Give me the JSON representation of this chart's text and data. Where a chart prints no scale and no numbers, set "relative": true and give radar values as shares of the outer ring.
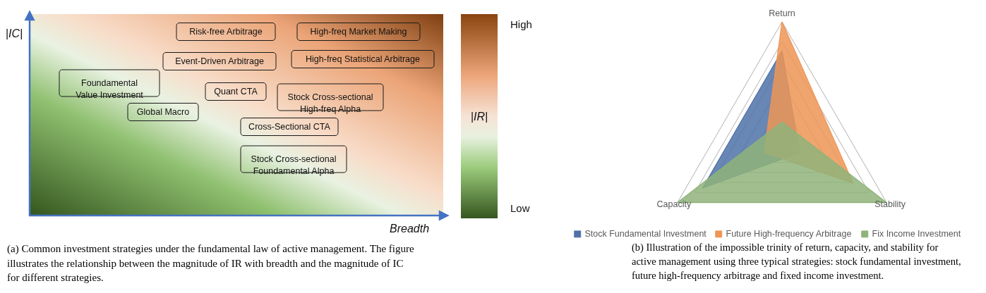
{
  "chart_data": [
    {
      "type": "other",
      "xlabel": "Breadth",
      "ylabel": "|IC|",
      "clabel": "|IR|",
      "annotations": [
        "Risk-free Arbitrage",
        "High-freq Market Making",
        "Event-Driven Arbitrage",
        "High-freq Statistical Arbitrage",
        "Foundamental\nValue Investment",
        "Quant CTA",
        "Stock Cross-sectional\nHigh-freq Alpha",
        "Global Macro",
        "Cross-Sectional CTA",
        "Stock Cross-sectional\nFoundamental Alpha",
        "High",
        "Low",
        "(a) Common investment strategies under the fundamental law of active management. The figure illustrates the relationship between the magnitude of IR with breadth and the magnitude of IC for different strategies."
      ]
    },
    {
      "type": "radar",
      "relative": true,
      "categories": [
        "Return",
        "Stability",
        "Capacity"
      ],
      "grid": true,
      "legend": "bottom",
      "series": [
        {
          "name": "Stock Fundamental Investment",
          "color": "#4f72a8",
          "values": [
            0.76,
            0.17,
            0.76
          ]
        },
        {
          "name": "Future High-frequency Arbitrage",
          "color": "#ef9555",
          "values": [
            1.0,
            0.68,
            0.17
          ]
        },
        {
          "name": "Fix Income Investment",
          "color": "#8fb37a",
          "values": [
            0.17,
            1.0,
            1.0
          ]
        }
      ],
      "annotations": [
        "(b) Illustration of the impossible trinity of return, capacity, and stability for active management using three typical strategies: stock fundamental investment, future high-frequency arbitrage and fixed income investment."
      ]
    }
  ]
}
